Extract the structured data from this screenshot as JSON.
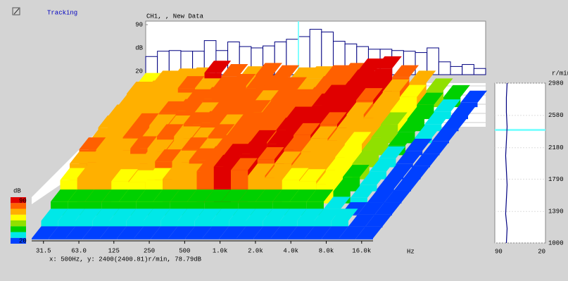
{
  "window_title": "Tracking",
  "status": "x:  500Hz, y: 2400(2400.81)r/min,  78.79dB",
  "chart_data": [
    {
      "type": "bar",
      "title": "CH1, , New Data",
      "ylabel": "dB",
      "ylim": [
        20,
        90
      ],
      "yticks": [
        20,
        90
      ],
      "values": [
        42,
        50,
        51,
        50,
        50,
        66,
        51,
        64,
        57,
        55,
        58,
        64,
        68,
        72,
        83,
        79,
        65,
        61,
        57,
        53,
        53,
        51,
        50,
        48,
        55,
        34,
        27,
        30,
        24
      ],
      "color": "#000080"
    },
    {
      "type": "waterfall",
      "xscale": "log",
      "xlim": [
        25,
        20000
      ],
      "xlabel": "Hz",
      "xticks": [
        31.5,
        {
          "value": 63,
          "label": "63.0"
        },
        125,
        250,
        500,
        {
          "value": 1000,
          "label": "1.0k"
        },
        {
          "value": 2000,
          "label": "2.0k"
        },
        {
          "value": 4000,
          "label": "4.0k"
        },
        {
          "value": 8000,
          "label": "8.0k"
        },
        {
          "value": 16000,
          "label": "16.0k"
        }
      ],
      "y": [
        1000,
        1180,
        1360,
        1540,
        1720,
        1900,
        2080,
        2260,
        2440,
        2620,
        2800,
        2980
      ],
      "values": [
        [
          22,
          22,
          22,
          22,
          22,
          22,
          22,
          22,
          22,
          22,
          22,
          22,
          22,
          22,
          22,
          22,
          22,
          22,
          22,
          22
        ],
        [
          32,
          32,
          32,
          32,
          32,
          32,
          32,
          32,
          32,
          32,
          32,
          32,
          32,
          32,
          32,
          32,
          32,
          32,
          22,
          22
        ],
        [
          45,
          45,
          45,
          45,
          45,
          45,
          45,
          45,
          45,
          45,
          45,
          45,
          45,
          45,
          45,
          45,
          32,
          22,
          22,
          22
        ],
        [
          62,
          66,
          64,
          60,
          58,
          62,
          64,
          70,
          78,
          86,
          80,
          70,
          66,
          62,
          60,
          55,
          42,
          30,
          22,
          22
        ],
        [
          70,
          72,
          68,
          66,
          70,
          74,
          72,
          76,
          80,
          84,
          88,
          78,
          70,
          66,
          64,
          58,
          46,
          32,
          24,
          22
        ],
        [
          74,
          70,
          72,
          76,
          70,
          68,
          74,
          72,
          78,
          80,
          87,
          84,
          74,
          70,
          66,
          60,
          48,
          34,
          24,
          22
        ],
        [
          66,
          72,
          74,
          70,
          76,
          72,
          70,
          76,
          74,
          78,
          80,
          88,
          78,
          72,
          68,
          62,
          50,
          36,
          26,
          22
        ],
        [
          70,
          68,
          74,
          72,
          70,
          76,
          78,
          72,
          74,
          76,
          78,
          86,
          88,
          76,
          70,
          64,
          52,
          38,
          28,
          22
        ],
        [
          68,
          72,
          70,
          74,
          78,
          72,
          74,
          80,
          76,
          74,
          78,
          80,
          88,
          84,
          72,
          66,
          54,
          40,
          30,
          24
        ],
        [
          64,
          70,
          72,
          68,
          74,
          78,
          76,
          74,
          72,
          76,
          74,
          78,
          82,
          89,
          76,
          68,
          56,
          42,
          32,
          24
        ],
        [
          66,
          68,
          70,
          76,
          72,
          74,
          80,
          76,
          78,
          74,
          72,
          76,
          80,
          88,
          84,
          70,
          60,
          46,
          34,
          26
        ],
        [
          60,
          64,
          68,
          70,
          82,
          76,
          72,
          78,
          74,
          70,
          72,
          74,
          78,
          86,
          90,
          74,
          64,
          50,
          38,
          28
        ]
      ],
      "zlim": [
        20,
        90
      ],
      "zticks": [
        20,
        90
      ],
      "zlabel": "dB",
      "colormap": [
        "#0040ff",
        "#00e8e8",
        "#00d000",
        "#90e000",
        "#ffff00",
        "#ffb000",
        "#ff6000",
        "#e00000"
      ]
    },
    {
      "type": "line",
      "ylabel": "r/min",
      "ylim": [
        1000,
        2980
      ],
      "yticks": [
        1000,
        1390,
        1790,
        2180,
        2580,
        2980
      ],
      "xlim": [
        90,
        20
      ],
      "xticks": [
        90,
        20
      ],
      "x": [
        1000,
        1180,
        1360,
        1540,
        1720,
        1900,
        2080,
        2260,
        2440,
        2620,
        2800,
        2980
      ],
      "values": [
        74,
        73,
        75,
        74,
        73,
        74,
        75,
        74,
        73,
        74,
        74,
        73
      ],
      "cursor": 2400,
      "color": "#000080",
      "cursor_color": "#80ffff"
    }
  ]
}
